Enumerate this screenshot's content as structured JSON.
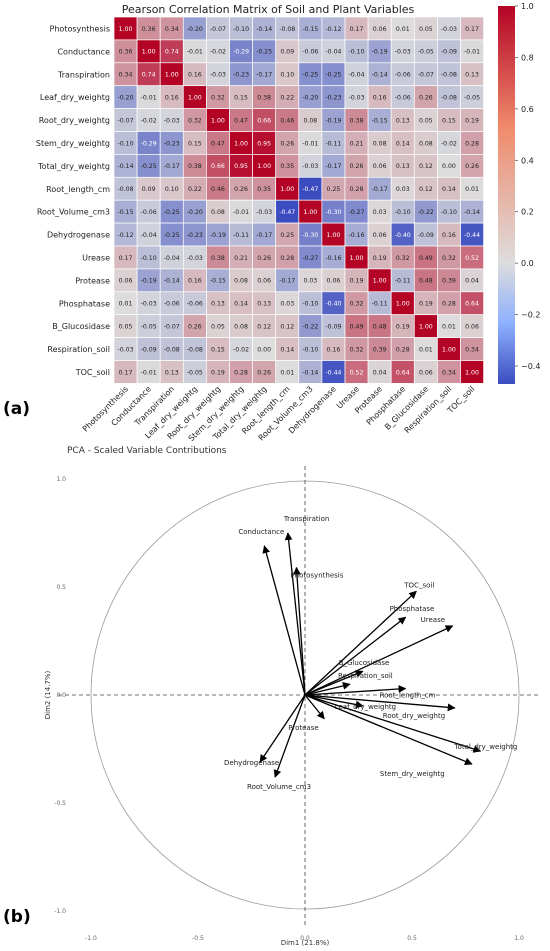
{
  "panel_labels": [
    "(a)",
    "(b)"
  ],
  "chart_data": [
    {
      "type": "heatmap",
      "title": "Pearson Correlation Matrix of Soil and Plant Variables",
      "variables": [
        "Photosynthesis",
        "Conductance",
        "Transpiration",
        "Leaf_dry_weightg",
        "Root_dry_weightg",
        "Stem_dry_weightg",
        "Total_dry_weightg",
        "Root_length_cm",
        "Root_Volume_cm3",
        "Dehydrogenase",
        "Urease",
        "Protease",
        "Phosphatase",
        "B_Glucosidase",
        "Respiration_soil",
        "TOC_soil"
      ],
      "values": [
        [
          "1.00",
          "0.36",
          "0.34",
          "-0.20",
          "-0.07",
          "-0.10",
          "-0.14",
          "-0.08",
          "-0.15",
          "-0.12",
          "0.17",
          "0.06",
          "0.01",
          "0.05",
          "-0.03",
          "0.17"
        ],
        [
          "0.36",
          "1.00",
          "0.74",
          "-0.01",
          "-0.02",
          "-0.29",
          "-0.25",
          "0.09",
          "-0.06",
          "-0.04",
          "-0.10",
          "-0.19",
          "-0.03",
          "-0.05",
          "-0.09",
          "-0.01"
        ],
        [
          "0.34",
          "0.74",
          "1.00",
          "0.16",
          "-0.03",
          "-0.23",
          "-0.17",
          "0.10",
          "-0.25",
          "-0.25",
          "-0.04",
          "-0.14",
          "-0.06",
          "-0.07",
          "-0.08",
          "0.13"
        ],
        [
          "-0.20",
          "-0.01",
          "0.16",
          "1.00",
          "0.32",
          "0.15",
          "0.38",
          "0.22",
          "-0.20",
          "-0.23",
          "-0.03",
          "0.16",
          "-0.06",
          "0.26",
          "-0.08",
          "-0.05"
        ],
        [
          "-0.07",
          "-0.02",
          "-0.03",
          "0.32",
          "1.00",
          "0.47",
          "0.66",
          "0.46",
          "0.08",
          "-0.19",
          "0.38",
          "-0.15",
          "0.13",
          "0.05",
          "0.15",
          "0.19"
        ],
        [
          "-0.10",
          "-0.29",
          "-0.23",
          "0.15",
          "0.47",
          "1.00",
          "0.95",
          "0.26",
          "-0.01",
          "-0.11",
          "0.21",
          "0.08",
          "0.14",
          "0.08",
          "-0.02",
          "0.28"
        ],
        [
          "-0.14",
          "-0.25",
          "-0.17",
          "0.38",
          "0.66",
          "0.95",
          "1.00",
          "0.35",
          "-0.03",
          "-0.17",
          "0.26",
          "0.06",
          "0.13",
          "0.12",
          "0.00",
          "0.26"
        ],
        [
          "-0.08",
          "0.09",
          "0.10",
          "0.22",
          "0.46",
          "0.26",
          "0.35",
          "1.00",
          "-0.47",
          "0.25",
          "0.28",
          "-0.17",
          "0.03",
          "0.12",
          "0.14",
          "0.01"
        ],
        [
          "-0.15",
          "-0.06",
          "-0.25",
          "-0.20",
          "0.08",
          "-0.01",
          "-0.03",
          "-0.47",
          "1.00",
          "-0.30",
          "-0.27",
          "0.03",
          "-0.10",
          "-0.22",
          "-0.10",
          "-0.14"
        ],
        [
          "-0.12",
          "-0.04",
          "-0.25",
          "-0.23",
          "-0.19",
          "-0.11",
          "-0.17",
          "0.25",
          "-0.30",
          "1.00",
          "-0.16",
          "0.06",
          "-0.40",
          "-0.09",
          "0.16",
          "-0.44"
        ],
        [
          "0.17",
          "-0.10",
          "-0.04",
          "-0.03",
          "0.38",
          "0.21",
          "0.26",
          "0.28",
          "-0.27",
          "-0.16",
          "1.00",
          "0.19",
          "0.32",
          "0.49",
          "0.32",
          "0.52"
        ],
        [
          "0.06",
          "-0.19",
          "-0.14",
          "0.16",
          "-0.15",
          "0.08",
          "0.06",
          "-0.17",
          "0.03",
          "0.06",
          "0.19",
          "1.00",
          "-0.11",
          "0.48",
          "0.39",
          "0.04"
        ],
        [
          "0.01",
          "-0.03",
          "-0.06",
          "-0.06",
          "0.13",
          "0.14",
          "0.13",
          "0.03",
          "-0.10",
          "-0.40",
          "0.32",
          "-0.11",
          "1.00",
          "0.19",
          "0.28",
          "0.64"
        ],
        [
          "0.05",
          "-0.05",
          "-0.07",
          "0.26",
          "0.05",
          "0.08",
          "0.12",
          "0.12",
          "-0.22",
          "-0.09",
          "0.49",
          "0.48",
          "0.19",
          "1.00",
          "0.01",
          "0.06"
        ],
        [
          "-0.03",
          "-0.09",
          "-0.08",
          "-0.08",
          "0.15",
          "-0.02",
          "0.00",
          "0.14",
          "-0.10",
          "0.16",
          "0.32",
          "0.39",
          "0.28",
          "0.01",
          "1.00",
          "0.34"
        ],
        [
          "0.17",
          "-0.01",
          "0.13",
          "-0.05",
          "0.19",
          "0.28",
          "0.26",
          "0.01",
          "-0.14",
          "-0.44",
          "0.52",
          "0.04",
          "0.64",
          "0.06",
          "0.34",
          "1.00"
        ]
      ],
      "colorbar": {
        "range": [
          -0.47,
          1.0
        ],
        "ticks": [
          "1.0",
          "0.8",
          "0.6",
          "0.4",
          "0.2",
          "0.0",
          "−0.2",
          "−0.4"
        ]
      },
      "colors": {
        "low": "#3b4cc0",
        "mid": "#dddddd",
        "high": "#b40426"
      }
    },
    {
      "type": "scatter",
      "title": "PCA - Scaled Variable Contributions",
      "xlabel": "Dim1 (21.8%)",
      "ylabel": "Dim2 (14.7%)",
      "xlim": [
        -1.0,
        1.0
      ],
      "ylim": [
        -1.0,
        1.0
      ],
      "xticks": [
        "-1.0",
        "-0.5",
        "0.0",
        "0.5",
        "1.0"
      ],
      "yticks": [
        "-1.0",
        "-0.5",
        "0.0",
        "0.5",
        "1.0"
      ],
      "vectors": [
        {
          "name": "Transpiration",
          "x": -0.08,
          "y": 0.75
        },
        {
          "name": "Conductance",
          "x": -0.19,
          "y": 0.69
        },
        {
          "name": "Photosynthesis",
          "x": -0.04,
          "y": 0.59
        },
        {
          "name": "TOC_soil",
          "x": 0.52,
          "y": 0.48
        },
        {
          "name": "Phosphatase",
          "x": 0.47,
          "y": 0.36
        },
        {
          "name": "Urease",
          "x": 0.69,
          "y": 0.32
        },
        {
          "name": "B_Glucosidase",
          "x": 0.27,
          "y": 0.11
        },
        {
          "name": "Respiration_soil",
          "x": 0.21,
          "y": 0.05
        },
        {
          "name": "Root_length_cm",
          "x": 0.47,
          "y": 0.03
        },
        {
          "name": "Leaf_dry_weightg",
          "x": 0.27,
          "y": -0.05
        },
        {
          "name": "Root_dry_weightg",
          "x": 0.7,
          "y": -0.06
        },
        {
          "name": "Protease",
          "x": 0.09,
          "y": -0.11
        },
        {
          "name": "Total_dry_weightg",
          "x": 0.82,
          "y": -0.26
        },
        {
          "name": "Stem_dry_weightg",
          "x": 0.78,
          "y": -0.32
        },
        {
          "name": "Dehydrogenase",
          "x": -0.21,
          "y": -0.31
        },
        {
          "name": "Root_Volume_cm3",
          "x": -0.14,
          "y": -0.38
        }
      ]
    }
  ]
}
